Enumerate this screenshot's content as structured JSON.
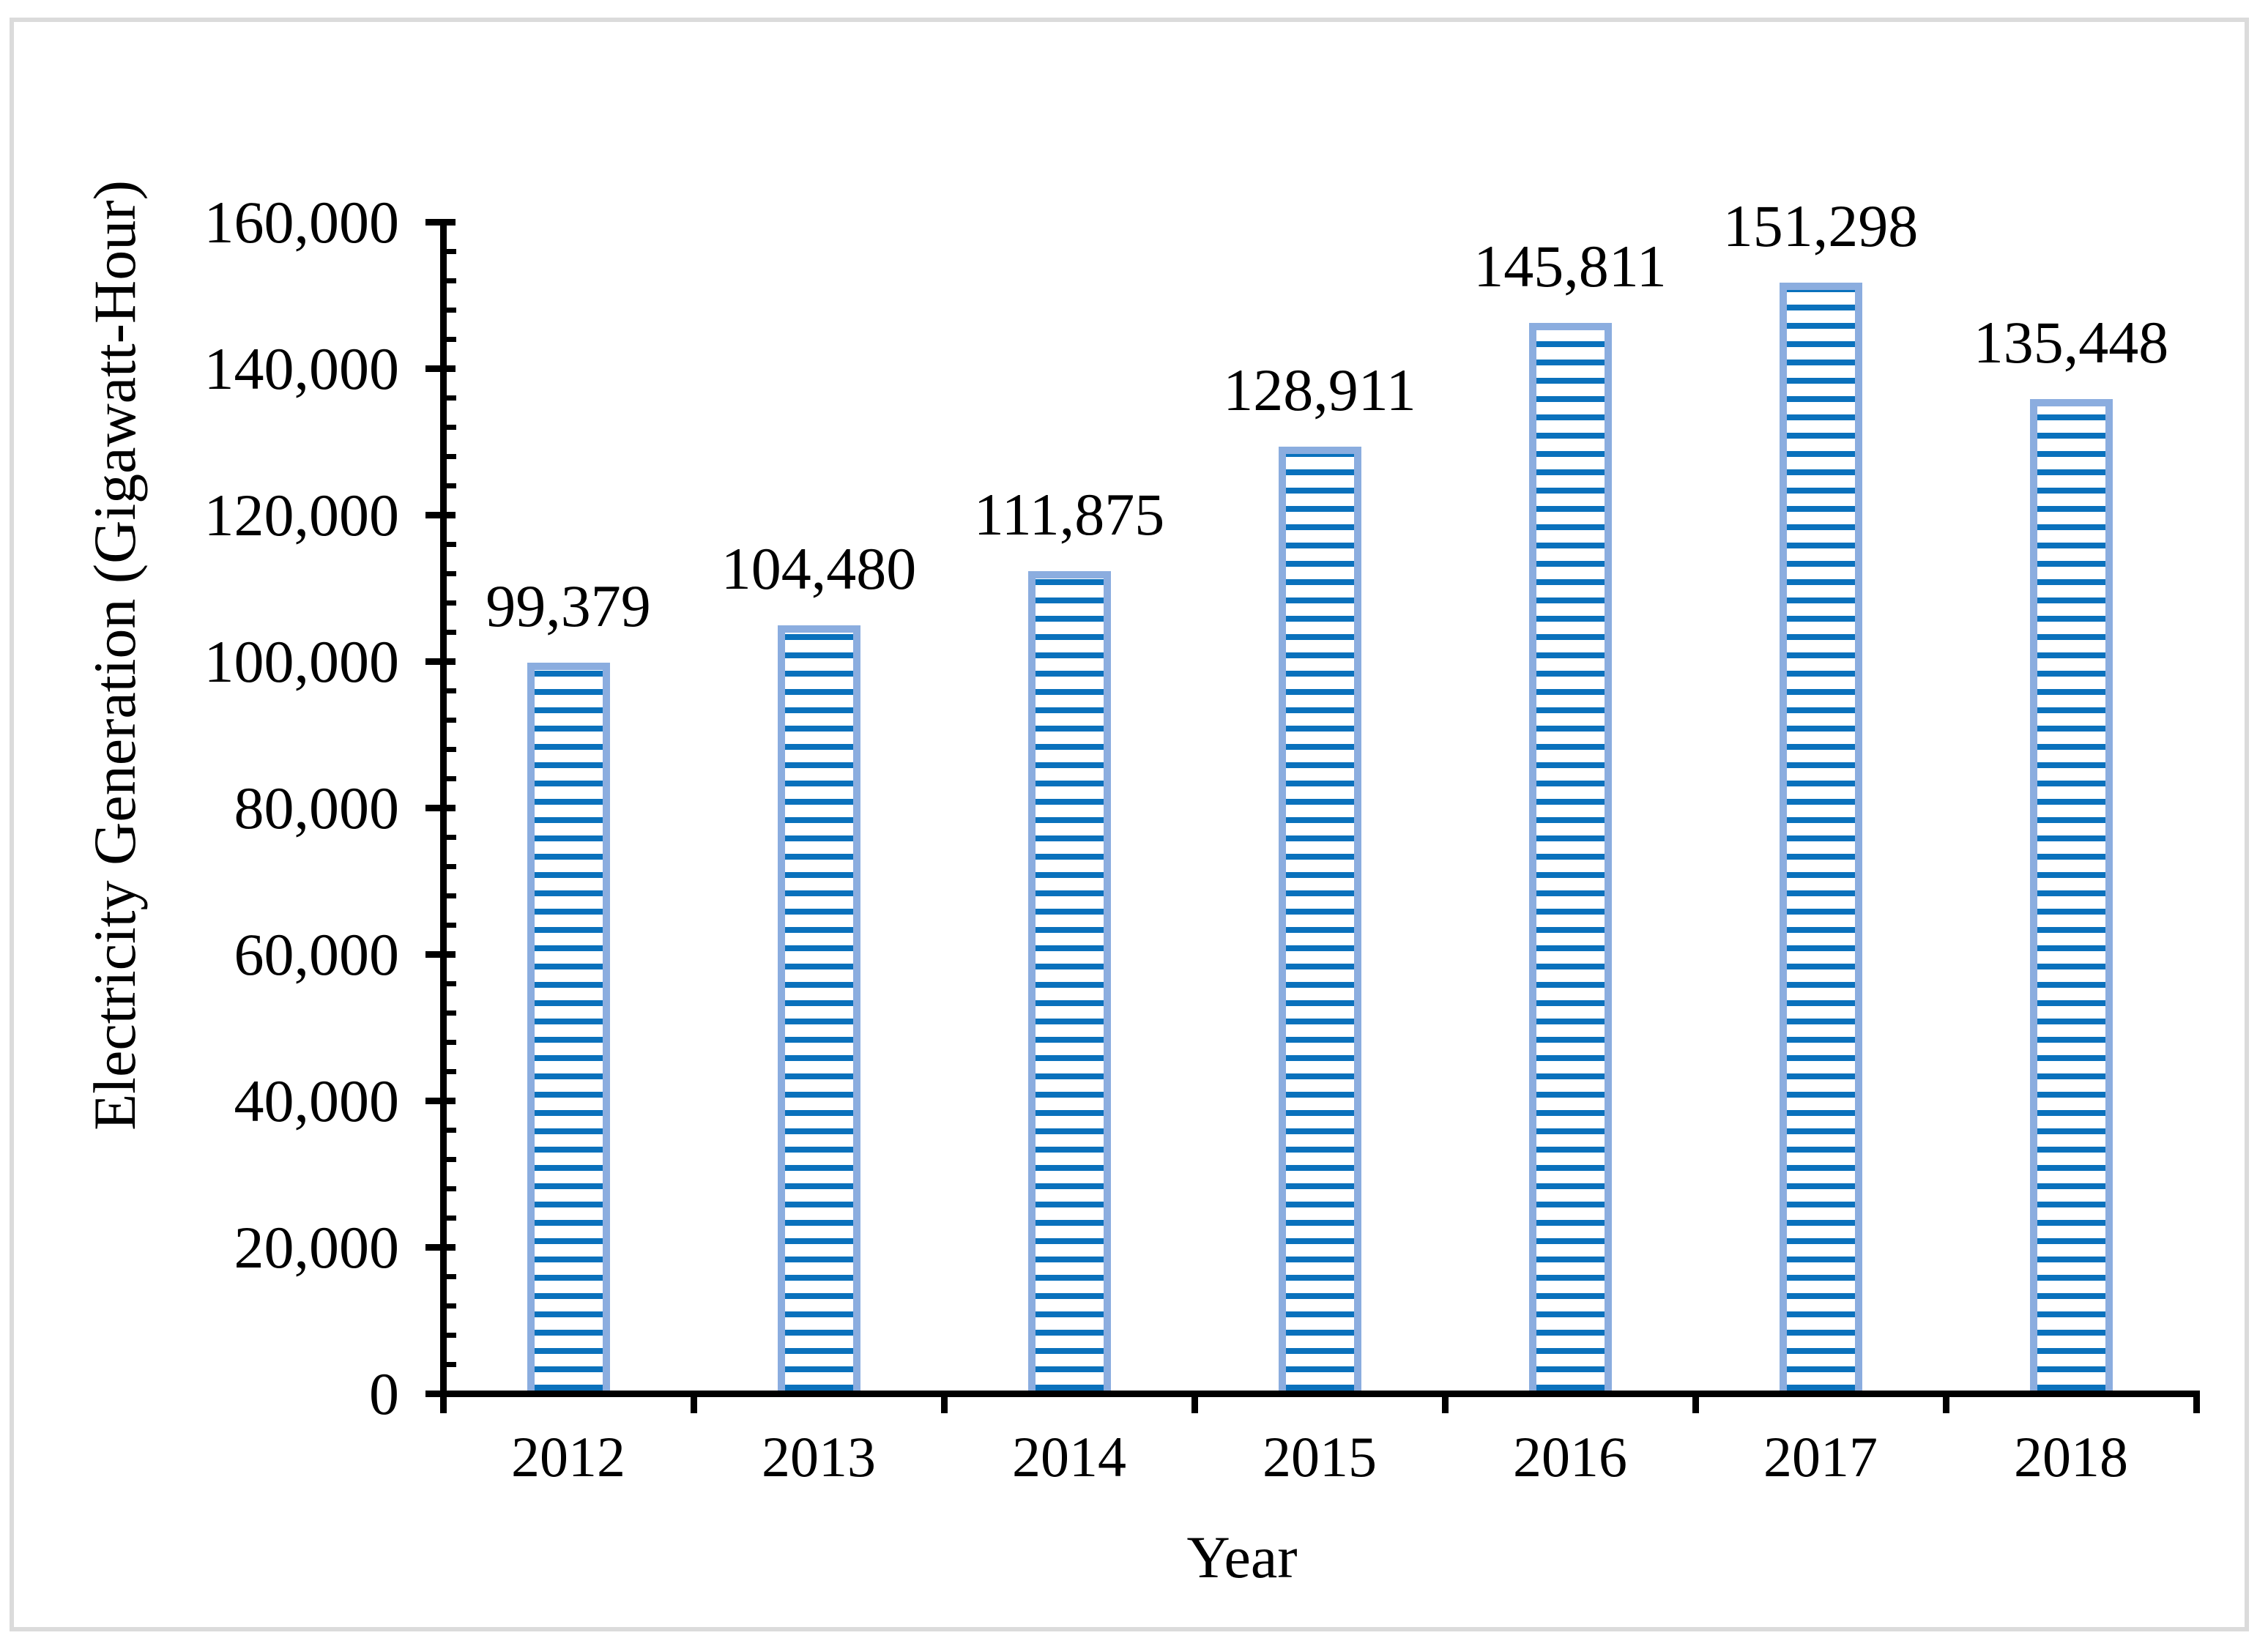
{
  "figure": {
    "frame_color": "#dbdbdb",
    "background": "#ffffff"
  },
  "chart_data": {
    "type": "bar",
    "title": "",
    "xlabel": "Year",
    "ylabel": "Electricity Generation (Gigawatt-Hour)",
    "categories": [
      "2012",
      "2013",
      "2014",
      "2015",
      "2016",
      "2017",
      "2018"
    ],
    "values": [
      99379,
      104480,
      111875,
      128911,
      145811,
      151298,
      135448
    ],
    "value_labels": [
      "99,379",
      "104,480",
      "111,875",
      "128,911",
      "145,811",
      "151,298",
      "135,448"
    ],
    "ylim": [
      0,
      160000
    ],
    "y_major_unit": 20000,
    "y_minor_unit": 4000,
    "ytick_labels": [
      "0",
      "20,000",
      "40,000",
      "60,000",
      "80,000",
      "100,000",
      "120,000",
      "140,000",
      "160,000"
    ],
    "grid": false,
    "legend_position": "none",
    "bar_style": {
      "fill": "#ffffff",
      "hatch": "horizontal-stripes",
      "stripe_color": "#0a71bc",
      "border_color": "#8baddf"
    },
    "text_color": "#000000",
    "axis_color": "#000000"
  }
}
